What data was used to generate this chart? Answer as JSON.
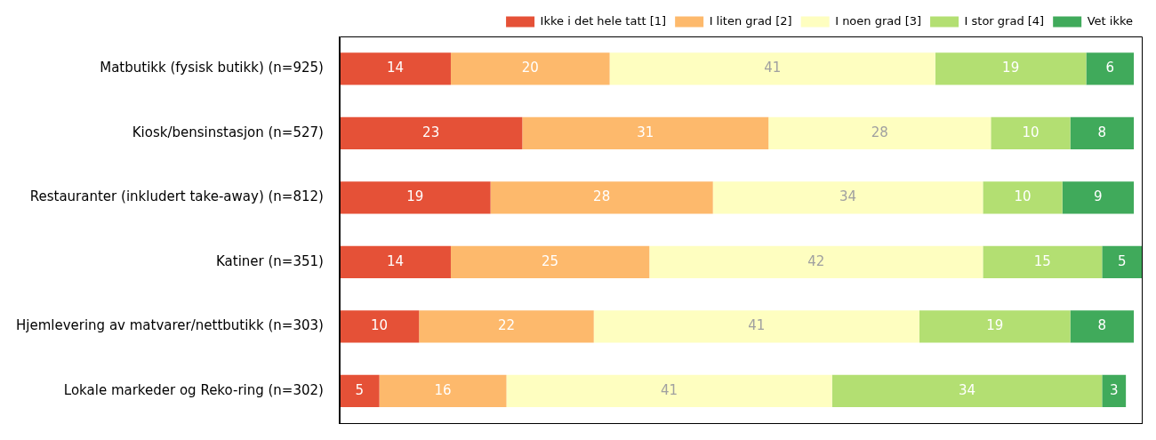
{
  "chart_data": {
    "type": "bar",
    "orientation": "horizontal",
    "stacked": true,
    "data_labels": true,
    "legend": "top",
    "grid": false,
    "tick_labels": "y",
    "xlim": [
      0,
      101
    ],
    "categories": [
      "Matbutikk (fysisk butikk) (n=925)",
      "Kiosk/bensinstasjon (n=527)",
      "Restauranter (inkludert take-away) (n=812)",
      "Katiner (n=351)",
      "Hjemlevering av matvarer/nettbutikk (n=303)",
      "Lokale markeder og Reko-ring (n=302)"
    ],
    "series": [
      {
        "name": "Ikke i det hele tatt [1]",
        "color": "#e55137",
        "values": [
          14,
          23,
          19,
          14,
          10,
          5
        ]
      },
      {
        "name": "I liten grad [2]",
        "color": "#fdb96c",
        "values": [
          20,
          31,
          28,
          25,
          22,
          16
        ]
      },
      {
        "name": "I noen grad [3]",
        "color": "#fefec0",
        "values": [
          41,
          28,
          34,
          42,
          41,
          41
        ]
      },
      {
        "name": "I stor grad [4]",
        "color": "#b3df72",
        "values": [
          19,
          10,
          10,
          15,
          19,
          34
        ]
      },
      {
        "name": "Vet ikke",
        "color": "#40aa5b",
        "values": [
          6,
          8,
          9,
          5,
          8,
          3
        ]
      }
    ]
  }
}
